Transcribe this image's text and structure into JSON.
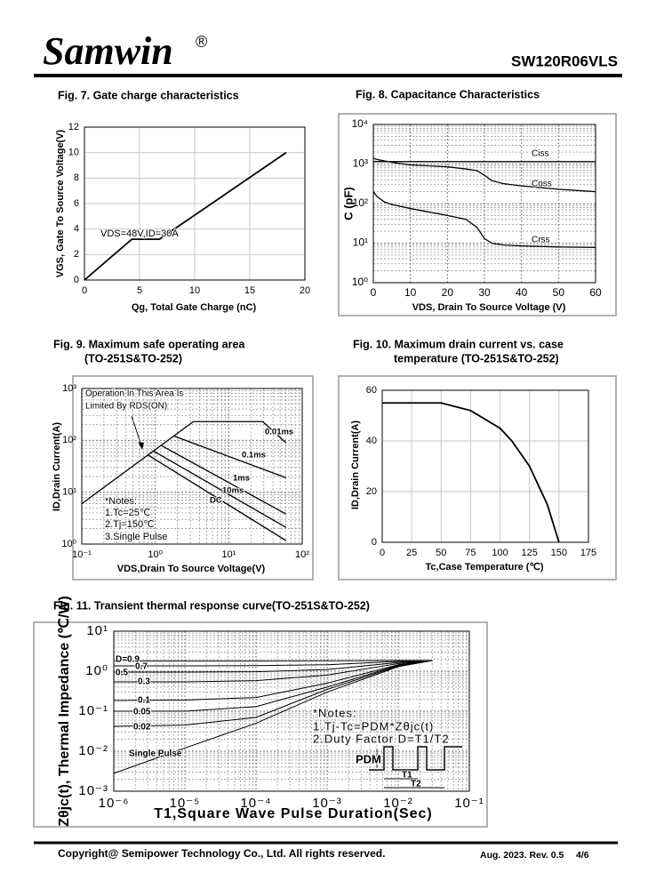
{
  "header": {
    "brand": "Samwin",
    "mark": "®",
    "part": "SW120R06VLS"
  },
  "chart_data": [
    {
      "type": "line",
      "title": "Fig. 7. Gate charge characteristics",
      "x_label": "Qg, Total Gate Charge (nC)",
      "y_label": "VGS, Gate To Source Voltage(V)",
      "x": [
        0,
        4.3,
        6.8,
        18.3
      ],
      "values": [
        0,
        3.2,
        3.2,
        10
      ],
      "color": "#000000",
      "xlim": [
        0,
        20
      ],
      "ylim": [
        0,
        12
      ],
      "xticks": [
        0,
        5,
        10,
        15,
        20
      ],
      "yticks": [
        0,
        2,
        4,
        6,
        8,
        10,
        12
      ],
      "grid": "solid",
      "annotations": [
        "VDS=48V,ID=30A"
      ]
    },
    {
      "type": "line",
      "title": "Fig. 8. Capacitance Characteristics",
      "x_label": "VDS, Drain To Source Voltage (V)",
      "y_label": "C (pF)",
      "y_log": true,
      "xlim": [
        0,
        60
      ],
      "ylim": [
        1,
        10000
      ],
      "xticks": [
        0,
        10,
        20,
        30,
        40,
        50,
        60
      ],
      "yticks": [
        {
          "value": 1,
          "label": "10⁰"
        },
        {
          "value": 10,
          "label": "10¹"
        },
        {
          "value": 100,
          "label": "10²"
        },
        {
          "value": 1000,
          "label": "10³"
        },
        {
          "value": 10000,
          "label": "10⁴"
        }
      ],
      "grid": "dotted",
      "series": [
        {
          "name": "Ciss",
          "color": "#000000",
          "x": [
            0,
            60
          ],
          "values": [
            1150,
            1150
          ]
        },
        {
          "name": "Coss",
          "color": "#000000",
          "x": [
            0,
            1,
            5,
            10,
            20,
            25,
            28,
            30,
            32,
            35,
            40,
            50,
            60
          ],
          "values": [
            1400,
            1300,
            1100,
            950,
            850,
            750,
            680,
            520,
            380,
            320,
            280,
            230,
            200
          ]
        },
        {
          "name": "Crss",
          "color": "#000000",
          "x": [
            0,
            1,
            3,
            5,
            10,
            20,
            25,
            28,
            30,
            32,
            35,
            40,
            50,
            60
          ],
          "values": [
            200,
            150,
            110,
            95,
            75,
            50,
            40,
            25,
            13,
            10,
            9,
            8.5,
            8,
            7.8
          ]
        }
      ]
    },
    {
      "type": "line",
      "title": "Fig. 9. Maximum safe operating area",
      "subtitle": "(TO-251S&TO-252)",
      "x_label": "VDS,Drain To Source Voltage(V)",
      "y_label": "ID,Drain Current(A)",
      "x_log": true,
      "y_log": true,
      "xlim": [
        0.1,
        100
      ],
      "ylim": [
        1,
        1000
      ],
      "xticks": [
        {
          "value": 0.1,
          "label": "10⁻¹"
        },
        {
          "value": 1,
          "label": "10⁰"
        },
        {
          "value": 10,
          "label": "10¹"
        },
        {
          "value": 100,
          "label": "10²"
        }
      ],
      "yticks": [
        {
          "value": 1,
          "label": "10⁰"
        },
        {
          "value": 10,
          "label": "10¹"
        },
        {
          "value": 100,
          "label": "10²"
        },
        {
          "value": 1000,
          "label": "10³"
        }
      ],
      "grid": "dotted",
      "series": [
        {
          "name": "0.01ms",
          "color": "#000000",
          "x": [
            0.1,
            3.3,
            29,
            60
          ],
          "values": [
            6,
            230,
            230,
            90
          ]
        },
        {
          "name": "0.1ms",
          "color": "#000000",
          "x": [
            1.8,
            60
          ],
          "values": [
            121,
            19
          ]
        },
        {
          "name": "1ms",
          "color": "#000000",
          "x": [
            1.2,
            60
          ],
          "values": [
            80,
            3.8
          ]
        },
        {
          "name": "10ms",
          "color": "#000000",
          "x": [
            0.95,
            60
          ],
          "values": [
            62,
            2.1
          ]
        },
        {
          "name": "DC",
          "color": "#000000",
          "x": [
            0.8,
            60
          ],
          "values": [
            52,
            1.17
          ]
        }
      ],
      "annotations": [
        "Operation In This Area Is",
        "Limited By RDS(ON)",
        "*Notes:",
        "1.Tc=25℃",
        "2.Tj=150℃",
        "3.Single Pulse"
      ]
    },
    {
      "type": "line",
      "title": "Fig. 10. Maximum drain current vs. case",
      "subtitle": "temperature (TO-251S&TO-252)",
      "x_label": "Tc,Case Temperature (℃)",
      "y_label": "ID,Drain Current(A)",
      "x": [
        0,
        25,
        50,
        75,
        100,
        110,
        125,
        140,
        150
      ],
      "values": [
        55,
        55,
        55,
        52,
        45,
        40,
        30,
        15,
        0
      ],
      "color": "#000000",
      "xlim": [
        0,
        175
      ],
      "ylim": [
        0,
        60
      ],
      "xticks": [
        0,
        25,
        50,
        75,
        100,
        125,
        150,
        175
      ],
      "yticks": [
        0,
        20,
        40,
        60
      ],
      "grid": "solid"
    },
    {
      "type": "line",
      "title": "Fig. 11. Transient thermal response curve(TO-251S&TO-252)",
      "x_label": "T1,Square Wave Pulse Duration(Sec)",
      "y_label": "Zθjc(t), Thermal Impedance (℃/W)",
      "x_log": true,
      "y_log": true,
      "xlim": [
        1e-06,
        0.1
      ],
      "ylim": [
        0.001,
        10
      ],
      "xticks": [
        {
          "value": 1e-06,
          "label": "10⁻⁶"
        },
        {
          "value": 1e-05,
          "label": "10⁻⁵"
        },
        {
          "value": 0.0001,
          "label": "10⁻⁴"
        },
        {
          "value": 0.001,
          "label": "10⁻³"
        },
        {
          "value": 0.01,
          "label": "10⁻²"
        },
        {
          "value": 0.1,
          "label": "10⁻¹"
        }
      ],
      "yticks": [
        {
          "value": 0.001,
          "label": "10⁻³"
        },
        {
          "value": 0.01,
          "label": "10⁻²"
        },
        {
          "value": 0.1,
          "label": "10⁻¹"
        },
        {
          "value": 1,
          "label": "10⁰"
        },
        {
          "value": 10,
          "label": "10¹"
        }
      ],
      "grid": "dotted",
      "x": [
        1e-06,
        1e-05,
        0.0001,
        0.001,
        0.01,
        0.03
      ],
      "series": [
        {
          "name": "D=0.9",
          "color": "#000000",
          "values": [
            1.8,
            1.8,
            1.8,
            1.82,
            1.85,
            1.85
          ]
        },
        {
          "name": "0.7",
          "color": "#000000",
          "values": [
            1.36,
            1.36,
            1.38,
            1.45,
            1.75,
            1.85
          ]
        },
        {
          "name": "0.5",
          "color": "#000000",
          "values": [
            0.95,
            0.95,
            0.97,
            1.1,
            1.65,
            1.85
          ]
        },
        {
          "name": "0.3",
          "color": "#000000",
          "values": [
            0.54,
            0.54,
            0.58,
            0.8,
            1.55,
            1.85
          ]
        },
        {
          "name": "0.1",
          "color": "#000000",
          "values": [
            0.185,
            0.19,
            0.22,
            0.5,
            1.45,
            1.85
          ]
        },
        {
          "name": "0.05",
          "color": "#000000",
          "values": [
            0.1,
            0.1,
            0.13,
            0.4,
            1.4,
            1.85
          ]
        },
        {
          "name": "0.02",
          "color": "#000000",
          "values": [
            0.042,
            0.045,
            0.07,
            0.35,
            1.35,
            1.85
          ]
        },
        {
          "name": "Single Pulse",
          "color": "#000000",
          "values": [
            0.0028,
            0.012,
            0.05,
            0.3,
            1.3,
            1.85
          ]
        }
      ],
      "annotations": [
        "*Notes:",
        "1.Tj-Tc=PDM*Zθjc(t)",
        "2.Duty Factor D=T1/T2",
        "PDM",
        "T1",
        "T2"
      ]
    }
  ],
  "footer": {
    "copyright": "Copyright@ Semipower Technology Co., Ltd. All rights reserved.",
    "revision": "Aug. 2023. Rev. 0.5",
    "page": "4/6"
  }
}
